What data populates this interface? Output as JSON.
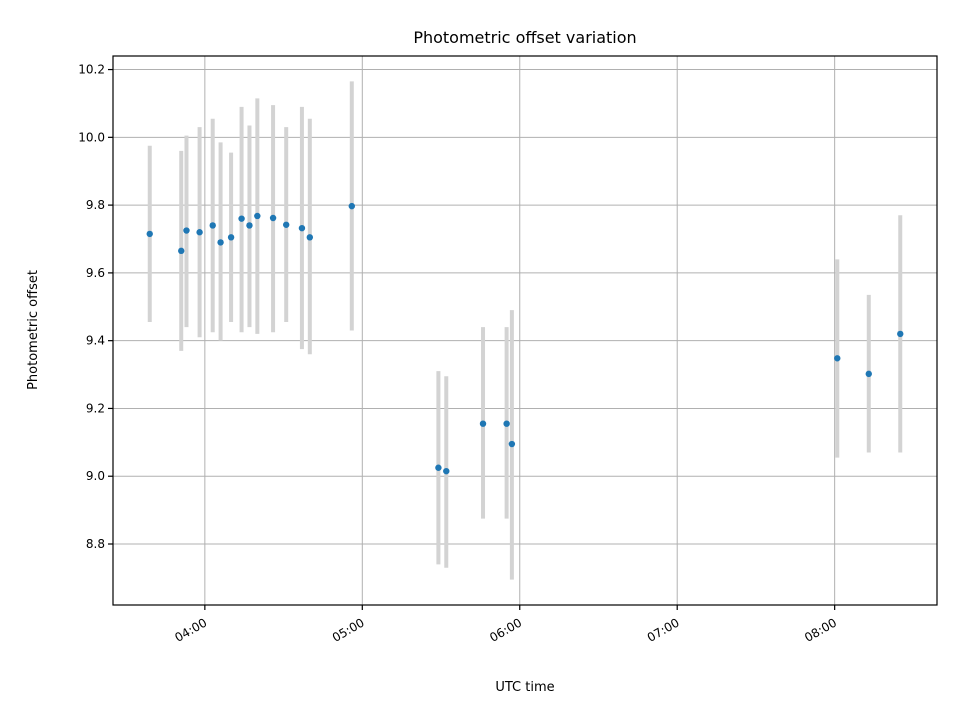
{
  "chart_data": {
    "type": "scatter",
    "title": "Photometric offset variation",
    "xlabel": "UTC time",
    "ylabel": "Photometric offset",
    "x_is_time": true,
    "xlim": [
      "03:25",
      "08:39"
    ],
    "ylim": [
      8.62,
      10.24
    ],
    "x_ticks": [
      "04:00",
      "05:00",
      "06:00",
      "07:00",
      "08:00"
    ],
    "y_ticks": [
      8.8,
      9.0,
      9.2,
      9.4,
      9.6,
      9.8,
      10.0,
      10.2
    ],
    "grid": true,
    "marker_color": "#1f77b4",
    "errorbar_color": "#d3d3d3",
    "points": [
      {
        "x": "03:39",
        "y": 9.715,
        "ylow": 9.455,
        "yhigh": 9.975
      },
      {
        "x": "03:51",
        "y": 9.665,
        "ylow": 9.37,
        "yhigh": 9.96
      },
      {
        "x": "03:53",
        "y": 9.725,
        "ylow": 9.44,
        "yhigh": 10.005
      },
      {
        "x": "03:58",
        "y": 9.72,
        "ylow": 9.41,
        "yhigh": 10.03
      },
      {
        "x": "04:03",
        "y": 9.74,
        "ylow": 9.425,
        "yhigh": 10.055
      },
      {
        "x": "04:06",
        "y": 9.69,
        "ylow": 9.4,
        "yhigh": 9.985
      },
      {
        "x": "04:10",
        "y": 9.705,
        "ylow": 9.455,
        "yhigh": 9.955
      },
      {
        "x": "04:14",
        "y": 9.76,
        "ylow": 9.425,
        "yhigh": 10.09
      },
      {
        "x": "04:17",
        "y": 9.74,
        "ylow": 9.44,
        "yhigh": 10.035
      },
      {
        "x": "04:20",
        "y": 9.768,
        "ylow": 9.42,
        "yhigh": 10.115
      },
      {
        "x": "04:26",
        "y": 9.762,
        "ylow": 9.425,
        "yhigh": 10.095
      },
      {
        "x": "04:31",
        "y": 9.742,
        "ylow": 9.455,
        "yhigh": 10.03
      },
      {
        "x": "04:37",
        "y": 9.732,
        "ylow": 9.375,
        "yhigh": 10.09
      },
      {
        "x": "04:40",
        "y": 9.705,
        "ylow": 9.36,
        "yhigh": 10.055
      },
      {
        "x": "04:56",
        "y": 9.797,
        "ylow": 9.43,
        "yhigh": 10.165
      },
      {
        "x": "05:29",
        "y": 9.025,
        "ylow": 8.74,
        "yhigh": 9.31
      },
      {
        "x": "05:32",
        "y": 9.015,
        "ylow": 8.73,
        "yhigh": 9.295
      },
      {
        "x": "05:46",
        "y": 9.155,
        "ylow": 8.875,
        "yhigh": 9.44
      },
      {
        "x": "05:55",
        "y": 9.155,
        "ylow": 8.875,
        "yhigh": 9.44
      },
      {
        "x": "05:57",
        "y": 9.095,
        "ylow": 8.695,
        "yhigh": 9.49
      },
      {
        "x": "08:01",
        "y": 9.348,
        "ylow": 9.055,
        "yhigh": 9.64
      },
      {
        "x": "08:13",
        "y": 9.302,
        "ylow": 9.07,
        "yhigh": 9.535
      },
      {
        "x": "08:25",
        "y": 9.42,
        "ylow": 9.07,
        "yhigh": 9.77
      }
    ]
  }
}
